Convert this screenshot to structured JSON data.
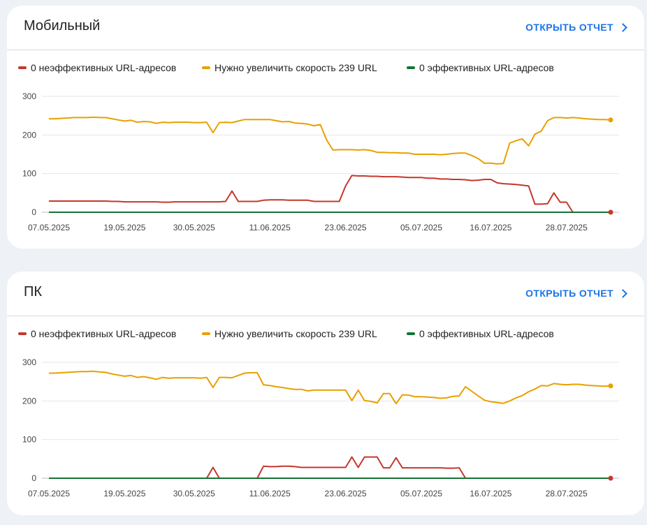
{
  "colors": {
    "bad": "#c5372c",
    "needs": "#e8a000",
    "good": "#137333",
    "link": "#1a73e8"
  },
  "sections": [
    {
      "title": "Мобильный",
      "link": "ОТКРЫТЬ ОТЧЕТ",
      "legend": [
        "0 неэффективных URL-адресов",
        "Нужно увеличить скорость 239 URL",
        "0 эффективных URL-адресов"
      ]
    },
    {
      "title": "ПК",
      "link": "ОТКРЫТЬ ОТЧЕТ",
      "legend": [
        "0 неэффективных URL-адресов",
        "Нужно увеличить скорость 239 URL",
        "0 эффективных URL-адресов"
      ]
    }
  ],
  "chart_data": [
    {
      "type": "line",
      "ylim": [
        0,
        300
      ],
      "yticks": [
        0,
        100,
        200,
        300
      ],
      "x": [
        "2025-05-07",
        "2025-05-08",
        "2025-05-09",
        "2025-05-10",
        "2025-05-11",
        "2025-05-12",
        "2025-05-13",
        "2025-05-14",
        "2025-05-15",
        "2025-05-16",
        "2025-05-17",
        "2025-05-18",
        "2025-05-19",
        "2025-05-20",
        "2025-05-21",
        "2025-05-22",
        "2025-05-23",
        "2025-05-24",
        "2025-05-25",
        "2025-05-26",
        "2025-05-27",
        "2025-05-28",
        "2025-05-29",
        "2025-05-30",
        "2025-05-31",
        "2025-06-01",
        "2025-06-02",
        "2025-06-03",
        "2025-06-04",
        "2025-06-05",
        "2025-06-06",
        "2025-06-07",
        "2025-06-08",
        "2025-06-09",
        "2025-06-10",
        "2025-06-11",
        "2025-06-12",
        "2025-06-13",
        "2025-06-14",
        "2025-06-15",
        "2025-06-16",
        "2025-06-17",
        "2025-06-18",
        "2025-06-19",
        "2025-06-20",
        "2025-06-21",
        "2025-06-22",
        "2025-06-23",
        "2025-06-24",
        "2025-06-25",
        "2025-06-26",
        "2025-06-27",
        "2025-06-28",
        "2025-06-29",
        "2025-06-30",
        "2025-07-01",
        "2025-07-02",
        "2025-07-03",
        "2025-07-04",
        "2025-07-05",
        "2025-07-06",
        "2025-07-07",
        "2025-07-08",
        "2025-07-09",
        "2025-07-10",
        "2025-07-11",
        "2025-07-12",
        "2025-07-13",
        "2025-07-14",
        "2025-07-15",
        "2025-07-16",
        "2025-07-17",
        "2025-07-18",
        "2025-07-19",
        "2025-07-20",
        "2025-07-21",
        "2025-07-22",
        "2025-07-23",
        "2025-07-24",
        "2025-07-25",
        "2025-07-26",
        "2025-07-27",
        "2025-07-28",
        "2025-07-29",
        "2025-07-30",
        "2025-07-31",
        "2025-08-01",
        "2025-08-02",
        "2025-08-03",
        "2025-08-04"
      ],
      "xticks": [
        "07.05.2025",
        "19.05.2025",
        "30.05.2025",
        "11.06.2025",
        "23.06.2025",
        "05.07.2025",
        "16.07.2025",
        "28.07.2025"
      ],
      "xtick_index": [
        0,
        12,
        23,
        35,
        47,
        59,
        70,
        82
      ],
      "series": [
        {
          "name": "0 неэффективных URL-адресов",
          "key": "bad",
          "values": [
            29,
            29,
            29,
            29,
            29,
            29,
            29,
            29,
            29,
            29,
            28,
            28,
            27,
            27,
            27,
            27,
            27,
            27,
            26,
            26,
            27,
            27,
            27,
            27,
            27,
            27,
            27,
            27,
            28,
            55,
            28,
            28,
            28,
            28,
            31,
            32,
            32,
            32,
            31,
            31,
            31,
            31,
            28,
            28,
            28,
            28,
            28,
            68,
            95,
            94,
            94,
            93,
            93,
            92,
            92,
            92,
            91,
            90,
            90,
            90,
            88,
            88,
            86,
            86,
            85,
            85,
            84,
            82,
            83,
            85,
            85,
            76,
            74,
            73,
            72,
            70,
            68,
            21,
            21,
            22,
            50,
            26,
            26,
            0,
            0,
            0,
            0,
            0,
            0,
            0
          ]
        },
        {
          "name": "Нужно увеличить скорость 239 URL",
          "key": "needs",
          "values": [
            242,
            242,
            243,
            244,
            245,
            245,
            245,
            246,
            245,
            245,
            242,
            239,
            236,
            238,
            233,
            235,
            234,
            230,
            233,
            232,
            233,
            233,
            233,
            232,
            232,
            233,
            206,
            232,
            233,
            232,
            236,
            240,
            240,
            240,
            240,
            240,
            237,
            234,
            235,
            231,
            230,
            228,
            224,
            227,
            187,
            161,
            162,
            162,
            162,
            161,
            162,
            160,
            155,
            155,
            154,
            154,
            153,
            153,
            150,
            150,
            150,
            150,
            149,
            150,
            152,
            153,
            153,
            147,
            139,
            127,
            127,
            125,
            126,
            179,
            185,
            190,
            172,
            202,
            210,
            237,
            245,
            245,
            244,
            245,
            244,
            242,
            241,
            240,
            240,
            239
          ]
        },
        {
          "name": "0 эффективных URL-адресов",
          "key": "good",
          "values": [
            0,
            0,
            0,
            0,
            0,
            0,
            0,
            0,
            0,
            0,
            0,
            0,
            0,
            0,
            0,
            0,
            0,
            0,
            0,
            0,
            0,
            0,
            0,
            0,
            0,
            0,
            0,
            0,
            0,
            0,
            0,
            0,
            0,
            0,
            0,
            0,
            0,
            0,
            0,
            0,
            0,
            0,
            0,
            0,
            0,
            0,
            0,
            0,
            0,
            0,
            0,
            0,
            0,
            0,
            0,
            0,
            0,
            0,
            0,
            0,
            0,
            0,
            0,
            0,
            0,
            0,
            0,
            0,
            0,
            0,
            0,
            0,
            0,
            0,
            0,
            0,
            0,
            0,
            0,
            0,
            0,
            0,
            0,
            0,
            0,
            0,
            0,
            0,
            0,
            0
          ]
        }
      ]
    },
    {
      "type": "line",
      "ylim": [
        0,
        300
      ],
      "yticks": [
        0,
        100,
        200,
        300
      ],
      "x": [
        "2025-05-07",
        "2025-05-08",
        "2025-05-09",
        "2025-05-10",
        "2025-05-11",
        "2025-05-12",
        "2025-05-13",
        "2025-05-14",
        "2025-05-15",
        "2025-05-16",
        "2025-05-17",
        "2025-05-18",
        "2025-05-19",
        "2025-05-20",
        "2025-05-21",
        "2025-05-22",
        "2025-05-23",
        "2025-05-24",
        "2025-05-25",
        "2025-05-26",
        "2025-05-27",
        "2025-05-28",
        "2025-05-29",
        "2025-05-30",
        "2025-05-31",
        "2025-06-01",
        "2025-06-02",
        "2025-06-03",
        "2025-06-04",
        "2025-06-05",
        "2025-06-06",
        "2025-06-07",
        "2025-06-08",
        "2025-06-09",
        "2025-06-10",
        "2025-06-11",
        "2025-06-12",
        "2025-06-13",
        "2025-06-14",
        "2025-06-15",
        "2025-06-16",
        "2025-06-17",
        "2025-06-18",
        "2025-06-19",
        "2025-06-20",
        "2025-06-21",
        "2025-06-22",
        "2025-06-23",
        "2025-06-24",
        "2025-06-25",
        "2025-06-26",
        "2025-06-27",
        "2025-06-28",
        "2025-06-29",
        "2025-06-30",
        "2025-07-01",
        "2025-07-02",
        "2025-07-03",
        "2025-07-04",
        "2025-07-05",
        "2025-07-06",
        "2025-07-07",
        "2025-07-08",
        "2025-07-09",
        "2025-07-10",
        "2025-07-11",
        "2025-07-12",
        "2025-07-13",
        "2025-07-14",
        "2025-07-15",
        "2025-07-16",
        "2025-07-17",
        "2025-07-18",
        "2025-07-19",
        "2025-07-20",
        "2025-07-21",
        "2025-07-22",
        "2025-07-23",
        "2025-07-24",
        "2025-07-25",
        "2025-07-26",
        "2025-07-27",
        "2025-07-28",
        "2025-07-29",
        "2025-07-30",
        "2025-07-31",
        "2025-08-01",
        "2025-08-02",
        "2025-08-03",
        "2025-08-04"
      ],
      "xticks": [
        "07.05.2025",
        "19.05.2025",
        "30.05.2025",
        "11.06.2025",
        "23.06.2025",
        "05.07.2025",
        "16.07.2025",
        "28.07.2025"
      ],
      "xtick_index": [
        0,
        12,
        23,
        35,
        47,
        59,
        70,
        82
      ],
      "series": [
        {
          "name": "0 неэффективных URL-адресов",
          "key": "bad",
          "values": [
            0,
            0,
            0,
            0,
            0,
            0,
            0,
            0,
            0,
            0,
            0,
            0,
            0,
            0,
            0,
            0,
            0,
            0,
            0,
            0,
            0,
            0,
            0,
            0,
            0,
            0,
            28,
            0,
            0,
            0,
            0,
            0,
            0,
            0,
            31,
            30,
            30,
            31,
            31,
            30,
            28,
            28,
            28,
            28,
            28,
            28,
            28,
            28,
            55,
            28,
            55,
            55,
            55,
            27,
            27,
            53,
            27,
            27,
            27,
            27,
            27,
            27,
            27,
            26,
            26,
            27,
            0,
            0,
            0,
            0,
            0,
            0,
            0,
            0,
            0,
            0,
            0,
            0,
            0,
            0,
            0,
            0,
            0,
            0,
            0,
            0,
            0,
            0,
            0,
            0
          ]
        },
        {
          "name": "Нужно увеличить скорость 239 URL",
          "key": "needs",
          "values": [
            272,
            272,
            273,
            274,
            275,
            276,
            276,
            277,
            275,
            274,
            270,
            267,
            264,
            266,
            261,
            263,
            260,
            256,
            261,
            259,
            260,
            260,
            260,
            260,
            259,
            261,
            235,
            261,
            261,
            260,
            266,
            272,
            273,
            273,
            242,
            240,
            237,
            235,
            232,
            230,
            230,
            226,
            228,
            228,
            228,
            228,
            228,
            228,
            201,
            228,
            201,
            199,
            195,
            219,
            219,
            193,
            216,
            215,
            211,
            211,
            210,
            209,
            207,
            208,
            212,
            213,
            237,
            225,
            213,
            202,
            198,
            196,
            194,
            200,
            208,
            214,
            224,
            231,
            240,
            239,
            245,
            243,
            242,
            243,
            243,
            241,
            240,
            239,
            238,
            239
          ]
        },
        {
          "name": "0 эффективных URL-адресов",
          "key": "good",
          "values": [
            0,
            0,
            0,
            0,
            0,
            0,
            0,
            0,
            0,
            0,
            0,
            0,
            0,
            0,
            0,
            0,
            0,
            0,
            0,
            0,
            0,
            0,
            0,
            0,
            0,
            0,
            0,
            0,
            0,
            0,
            0,
            0,
            0,
            0,
            0,
            0,
            0,
            0,
            0,
            0,
            0,
            0,
            0,
            0,
            0,
            0,
            0,
            0,
            0,
            0,
            0,
            0,
            0,
            0,
            0,
            0,
            0,
            0,
            0,
            0,
            0,
            0,
            0,
            0,
            0,
            0,
            0,
            0,
            0,
            0,
            0,
            0,
            0,
            0,
            0,
            0,
            0,
            0,
            0,
            0,
            0,
            0,
            0,
            0,
            0,
            0,
            0,
            0,
            0,
            0
          ]
        }
      ]
    }
  ]
}
